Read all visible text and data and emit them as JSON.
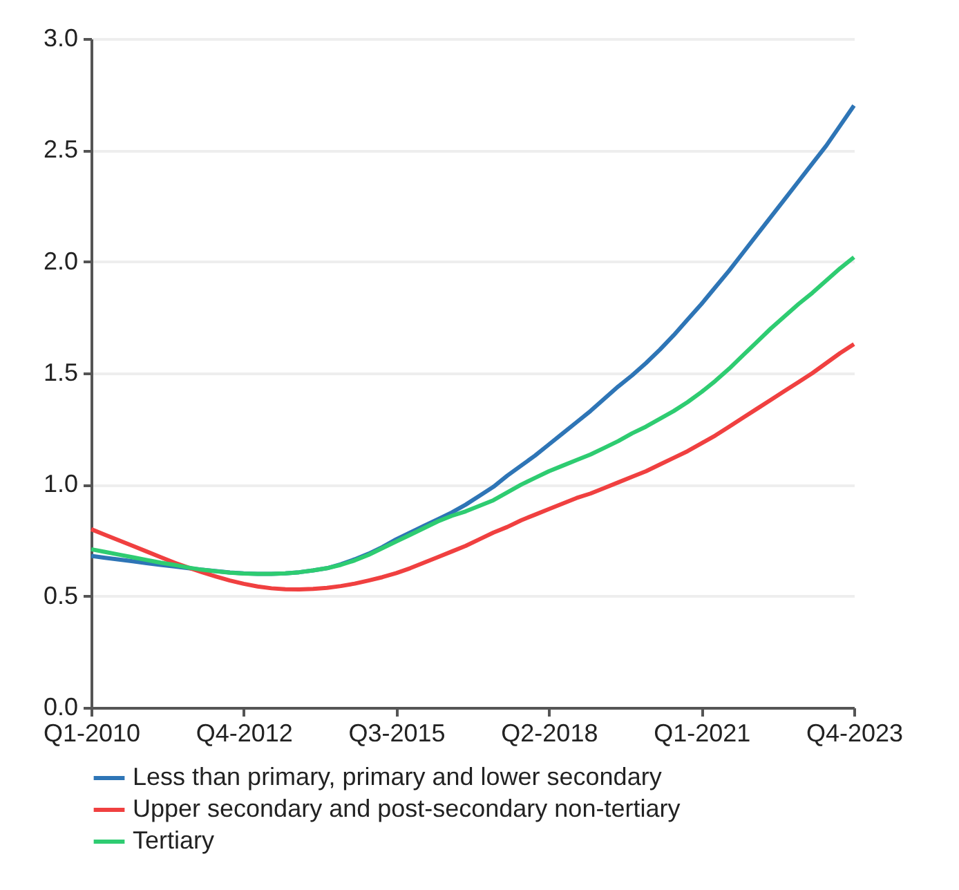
{
  "chart_data": {
    "type": "line",
    "categories": [
      "Q1-2010",
      null,
      null,
      null,
      null,
      null,
      null,
      null,
      null,
      null,
      null,
      "Q4-2012",
      null,
      null,
      null,
      null,
      null,
      null,
      null,
      null,
      null,
      null,
      "Q3-2015",
      null,
      null,
      null,
      null,
      null,
      null,
      null,
      null,
      null,
      null,
      "Q2-2018",
      null,
      null,
      null,
      null,
      null,
      null,
      null,
      null,
      null,
      null,
      "Q1-2021",
      null,
      null,
      null,
      null,
      null,
      null,
      null,
      null,
      null,
      null,
      "Q4-2023"
    ],
    "series": [
      {
        "name": "Less than primary, primary and lower secondary",
        "color": "#2e75b6",
        "values": [
          0.68,
          0.672,
          0.664,
          0.656,
          0.648,
          0.64,
          0.633,
          0.625,
          0.618,
          0.612,
          0.606,
          0.602,
          0.6,
          0.6,
          0.602,
          0.607,
          0.615,
          0.625,
          0.643,
          0.665,
          0.69,
          0.72,
          0.755,
          0.785,
          0.815,
          0.845,
          0.875,
          0.91,
          0.95,
          0.99,
          1.04,
          1.085,
          1.13,
          1.18,
          1.23,
          1.28,
          1.33,
          1.385,
          1.44,
          1.49,
          1.545,
          1.605,
          1.67,
          1.74,
          1.81,
          1.885,
          1.96,
          2.04,
          2.12,
          2.2,
          2.28,
          2.36,
          2.44,
          2.52,
          2.61,
          2.7
        ]
      },
      {
        "name": "Upper secondary and post-secondary non-tertiary",
        "color": "#f04040",
        "values": [
          0.8,
          0.775,
          0.75,
          0.725,
          0.7,
          0.675,
          0.65,
          0.628,
          0.607,
          0.588,
          0.57,
          0.555,
          0.543,
          0.535,
          0.531,
          0.53,
          0.532,
          0.537,
          0.545,
          0.556,
          0.57,
          0.585,
          0.603,
          0.625,
          0.65,
          0.675,
          0.7,
          0.725,
          0.755,
          0.785,
          0.81,
          0.84,
          0.865,
          0.89,
          0.915,
          0.94,
          0.96,
          0.985,
          1.01,
          1.035,
          1.06,
          1.09,
          1.12,
          1.15,
          1.185,
          1.22,
          1.26,
          1.3,
          1.34,
          1.38,
          1.42,
          1.46,
          1.5,
          1.545,
          1.59,
          1.63
        ]
      },
      {
        "name": "Tertiary",
        "color": "#2ecc71",
        "values": [
          0.71,
          0.698,
          0.686,
          0.674,
          0.662,
          0.65,
          0.64,
          0.628,
          0.618,
          0.611,
          0.605,
          0.601,
          0.6,
          0.6,
          0.602,
          0.607,
          0.615,
          0.625,
          0.64,
          0.66,
          0.685,
          0.715,
          0.745,
          0.775,
          0.805,
          0.835,
          0.86,
          0.88,
          0.905,
          0.93,
          0.965,
          1.0,
          1.03,
          1.06,
          1.085,
          1.11,
          1.135,
          1.165,
          1.195,
          1.23,
          1.26,
          1.295,
          1.33,
          1.37,
          1.415,
          1.465,
          1.52,
          1.58,
          1.64,
          1.7,
          1.755,
          1.81,
          1.86,
          1.915,
          1.97,
          2.02
        ]
      }
    ],
    "ylim": [
      0,
      3
    ],
    "yticks": [
      {
        "value": 0,
        "label": "0.0"
      },
      {
        "value": 0.5,
        "label": "0.5"
      },
      {
        "value": 1,
        "label": "1.0"
      },
      {
        "value": 1.5,
        "label": "1.5"
      },
      {
        "value": 2,
        "label": "2.0"
      },
      {
        "value": 2.5,
        "label": "2.5"
      },
      {
        "value": 3,
        "label": "3.0"
      }
    ],
    "grid": "y",
    "legend": "bottom",
    "line_style": "solid",
    "marker": "none"
  }
}
